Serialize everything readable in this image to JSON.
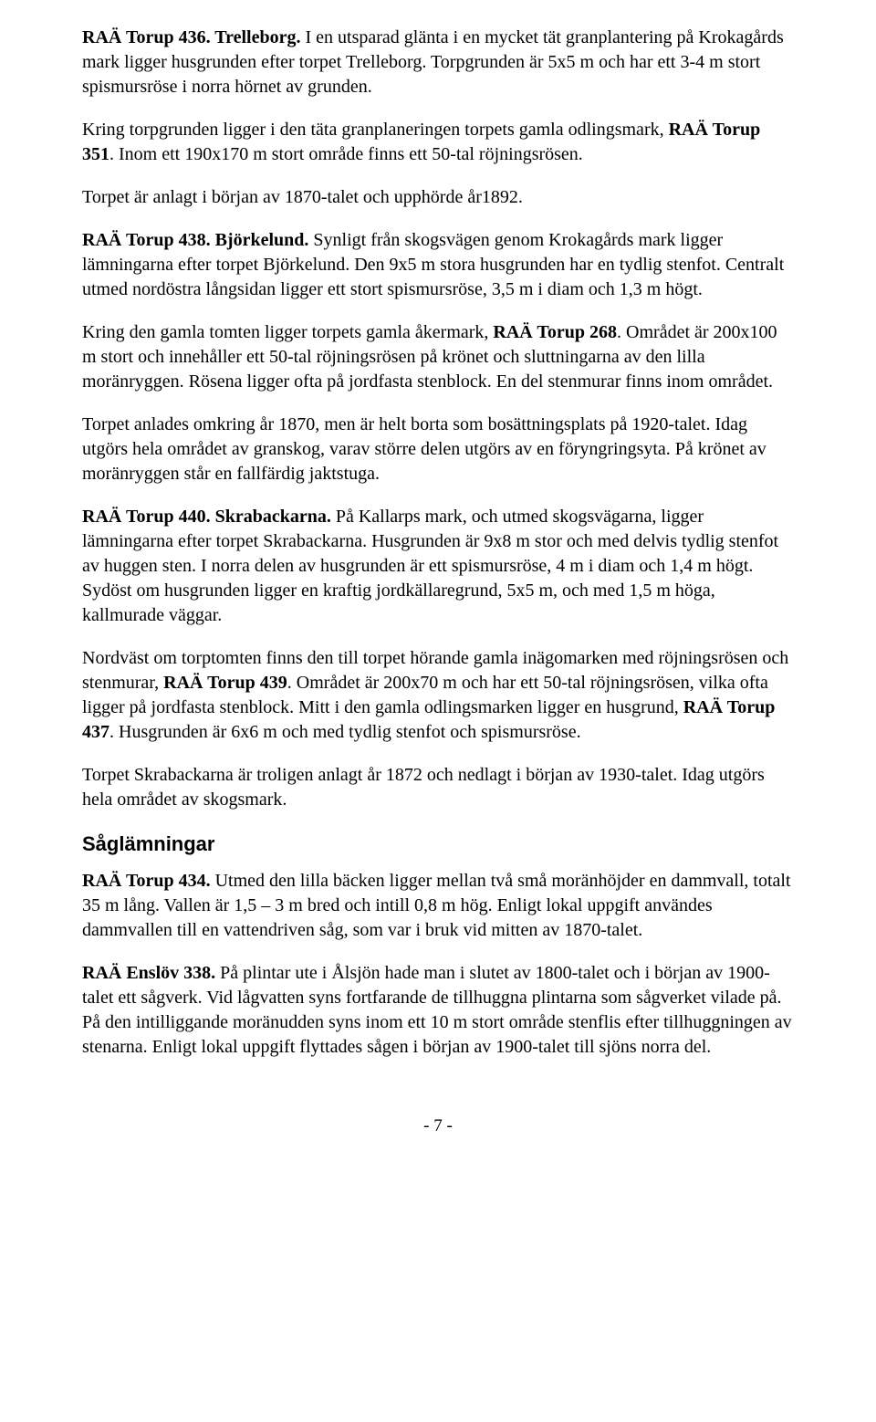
{
  "para1_bold": "RAÄ Torup 436. Trelleborg.",
  "para1_text": " I en utsparad glänta i en mycket tät granplantering på Krokagårds mark ligger husgrunden efter torpet Trelleborg. Torpgrunden är 5x5 m och har ett 3-4 m stort spismursröse i norra hörnet av grunden.",
  "para2_a": "Kring torpgrunden ligger i den täta granplaneringen torpets gamla odlingsmark, ",
  "para2_bold": "RAÄ Torup 351",
  "para2_b": ". Inom ett 190x170 m stort område finns ett 50-tal röjningsrösen.",
  "para3": "Torpet är anlagt i början av 1870-talet och upphörde år1892.",
  "para4_bold": "RAÄ Torup 438. Björkelund.",
  "para4_text": " Synligt från skogsvägen genom Krokagårds mark ligger lämningarna efter torpet Björkelund. Den 9x5 m stora husgrunden har en tydlig stenfot. Centralt utmed nordöstra långsidan ligger ett stort spismursröse, 3,5 m i diam och 1,3 m högt.",
  "para5_a": "Kring den gamla tomten ligger torpets gamla åkermark, ",
  "para5_bold": "RAÄ Torup 268",
  "para5_b": ". Området är 200x100 m stort och innehåller ett 50-tal röjningsrösen på krönet och sluttningarna av den lilla moränryggen. Rösena ligger ofta på jordfasta stenblock. En del stenmurar finns inom området.",
  "para6": "Torpet anlades omkring år 1870, men är helt borta som bosättningsplats på 1920-talet. Idag utgörs hela området av granskog, varav större delen utgörs av en föryngringsyta. På krönet av moränryggen står en fallfärdig jaktstuga.",
  "para7_bold": "RAÄ Torup 440. Skrabackarna.",
  "para7_text": " På Kallarps mark, och utmed skogsvägarna, ligger lämningarna efter torpet Skrabackarna. Husgrunden är 9x8 m stor och med delvis tydlig stenfot av huggen sten. I norra delen av husgrunden är ett spismursröse, 4 m i diam och 1,4 m högt. Sydöst om husgrunden ligger en kraftig jordkällaregrund, 5x5 m, och med 1,5 m höga, kallmurade väggar.",
  "para8_a": "Nordväst om torptomten finns den till torpet hörande gamla inägomarken med röjningsrösen och stenmurar, ",
  "para8_bold1": "RAÄ Torup 439",
  "para8_b": ". Området är 200x70 m och har ett 50-tal röjningsrösen, vilka ofta ligger på jordfasta stenblock. Mitt i den gamla odlingsmarken ligger en husgrund, ",
  "para8_bold2": "RAÄ Torup 437",
  "para8_c": ". Husgrunden är 6x6 m och med tydlig stenfot och spismursröse.",
  "para9": "Torpet Skrabackarna är troligen anlagt år 1872 och nedlagt i början av 1930-talet. Idag utgörs hela området av skogsmark.",
  "heading1": "Såglämningar",
  "para10_bold": "RAÄ Torup 434.",
  "para10_text": " Utmed den lilla bäcken ligger mellan två små moränhöjder en dammvall, totalt 35 m lång. Vallen är 1,5 – 3 m bred och intill 0,8 m hög. Enligt lokal uppgift användes dammvallen till en vattendriven såg, som var i bruk vid mitten av 1870-talet.",
  "para11_bold": "RAÄ Enslöv 338.",
  "para11_text": " På plintar ute i Ålsjön hade man i slutet av 1800-talet och i början av 1900-talet ett sågverk. Vid lågvatten syns fortfarande de tillhuggna plintarna som sågverket vilade på. På den intilliggande moränudden syns inom ett 10 m stort område stenflis efter tillhuggningen av stenarna. Enligt lokal uppgift flyttades sågen i början av 1900-talet till sjöns norra del.",
  "pagenum": "- 7 -"
}
